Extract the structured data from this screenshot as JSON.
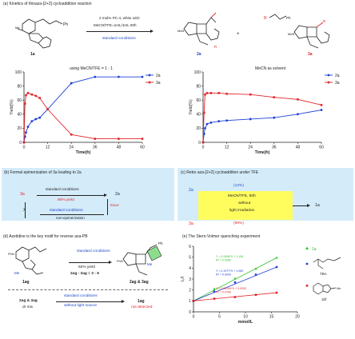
{
  "panel_a": {
    "title": "(a) Kinetics of thioaza-[2+2] cycloaddition reaction",
    "reactant_label": "1a",
    "reagent_lines": [
      "2 mol% PC-4, white LED",
      "MeCN/TFE=1mL/1mL 60h"
    ],
    "condition_label": "standard conditions",
    "product_labels": [
      "2a",
      "3a"
    ],
    "plus": "+"
  },
  "colors": {
    "series_2a": "#1f3fd6",
    "series_3a": "#e3262a",
    "accent_blue": "#1d47c9",
    "accent_red": "#e3262a",
    "highlight_yellow": "#fffd5e",
    "panel_blue": "#d4ecfa",
    "green": "#2ec12e"
  },
  "chart_data": [
    {
      "type": "line",
      "title": "using MeCN/TFE = 1 : 1",
      "xlabel": "Time(h)",
      "ylabel": "Yield(%)",
      "xlim": [
        0,
        60
      ],
      "ylim": [
        0,
        100
      ],
      "xticks": [
        0,
        12,
        24,
        36,
        48,
        60
      ],
      "yticks": [
        0,
        20,
        40,
        60,
        80,
        100
      ],
      "legend": "right",
      "series": [
        {
          "name": "2a",
          "x": [
            0,
            0.5,
            1,
            2,
            4,
            6,
            8,
            12,
            24,
            36,
            48,
            60
          ],
          "y": [
            0,
            8,
            14,
            22,
            30,
            33,
            35,
            47,
            84,
            93,
            93,
            93
          ]
        },
        {
          "name": "3a",
          "x": [
            0,
            0.5,
            1,
            2,
            4,
            6,
            8,
            12,
            24,
            36,
            48,
            60
          ],
          "y": [
            0,
            55,
            67,
            70,
            68,
            66,
            63,
            47,
            11,
            5,
            5,
            5
          ]
        }
      ]
    },
    {
      "type": "line",
      "title": "MeCN as solvent",
      "xlabel": "Time(h)",
      "ylabel": "Yield(%)",
      "xlim": [
        0,
        60
      ],
      "ylim": [
        0,
        100
      ],
      "xticks": [
        0,
        12,
        24,
        36,
        48,
        60
      ],
      "yticks": [
        0,
        20,
        40,
        60,
        80,
        100
      ],
      "legend": "right",
      "series": [
        {
          "name": "2a",
          "x": [
            0,
            0.5,
            1,
            2,
            4,
            8,
            12,
            24,
            36,
            48,
            60
          ],
          "y": [
            0,
            12,
            20,
            26,
            28,
            30,
            31,
            33,
            35,
            40,
            46
          ]
        },
        {
          "name": "3a",
          "x": [
            0,
            0.5,
            1,
            2,
            4,
            8,
            12,
            24,
            36,
            48,
            60
          ],
          "y": [
            0,
            42,
            68,
            70,
            70,
            70,
            69,
            68,
            64,
            61,
            53
          ]
        }
      ]
    },
    {
      "type": "scatter",
      "title": "",
      "xlabel": "mmol/L",
      "ylabel": "I₀/I",
      "xlim": [
        0,
        20
      ],
      "ylim": [
        0,
        6
      ],
      "xticks": [
        0,
        5,
        10,
        15,
        20
      ],
      "yticks": [
        0,
        1,
        2,
        3,
        4,
        5,
        6
      ],
      "series": [
        {
          "name": "1a",
          "x": [
            0,
            4,
            8,
            12,
            16
          ],
          "y": [
            1.0,
            2.1,
            3.05,
            3.95,
            4.95
          ]
        },
        {
          "name": "",
          "x": [
            0,
            4,
            8,
            12,
            16
          ],
          "y": [
            1.0,
            1.85,
            2.7,
            3.4,
            4.1
          ]
        },
        {
          "name": "",
          "x": [
            0,
            4,
            8,
            12,
            16
          ],
          "y": [
            1.0,
            1.2,
            1.35,
            1.55,
            1.75
          ]
        }
      ],
      "equations": [
        {
          "text": "Y = 0.2498*X + 1.106",
          "r2": "R² = 0.9959"
        },
        {
          "text": "Y = 0.1977*X + 1.080",
          "r2": "R² = 0.9943"
        },
        {
          "text": "Y = 0.04949*X + 0.9292",
          "r2": "R² = 0.9789"
        }
      ],
      "structure_labels": [
        "1a",
        "TBA",
        "1bf"
      ]
    }
  ],
  "panel_b": {
    "title": "(b) Formal epimerization of 3a leading to 2a",
    "from": "3a",
    "to": "2a",
    "cond_top": "standard conditions",
    "yield": "90% yield",
    "cond_bottom": "standard conditions",
    "non_epim": "non-epimerization",
    "trace": "trace",
    "cross": "X"
  },
  "panel_c": {
    "title": "(c) Retro aza-[2+2] cycloaddition under TFE",
    "top_label": "2a",
    "top_pct": "(12%)",
    "box_lines": [
      "MeCN/TFE, 60h",
      "without",
      "light irradiation"
    ],
    "bottom_label": "3a",
    "bottom_pct": "(98%)",
    "product": "1a"
  },
  "panel_d": {
    "title": "(d) Azetidine is the key motif for reverse aza-PB",
    "reactant_label": "1ag",
    "cond": "standard conditions",
    "yield": "92% yield",
    "ratio": "2ag : 3ag = 3 : 5",
    "product_labels": "2ag & 3ag",
    "mix_line1": "2ag & 3ag",
    "mix_line2": "dr mix",
    "cond2_1": "standard conditions",
    "cond2_2": "without light source",
    "result_label": "1ag",
    "result_status": "not detected"
  },
  "panel_e": {
    "title": "(e) The Stern-Volmer quenching experiment"
  }
}
